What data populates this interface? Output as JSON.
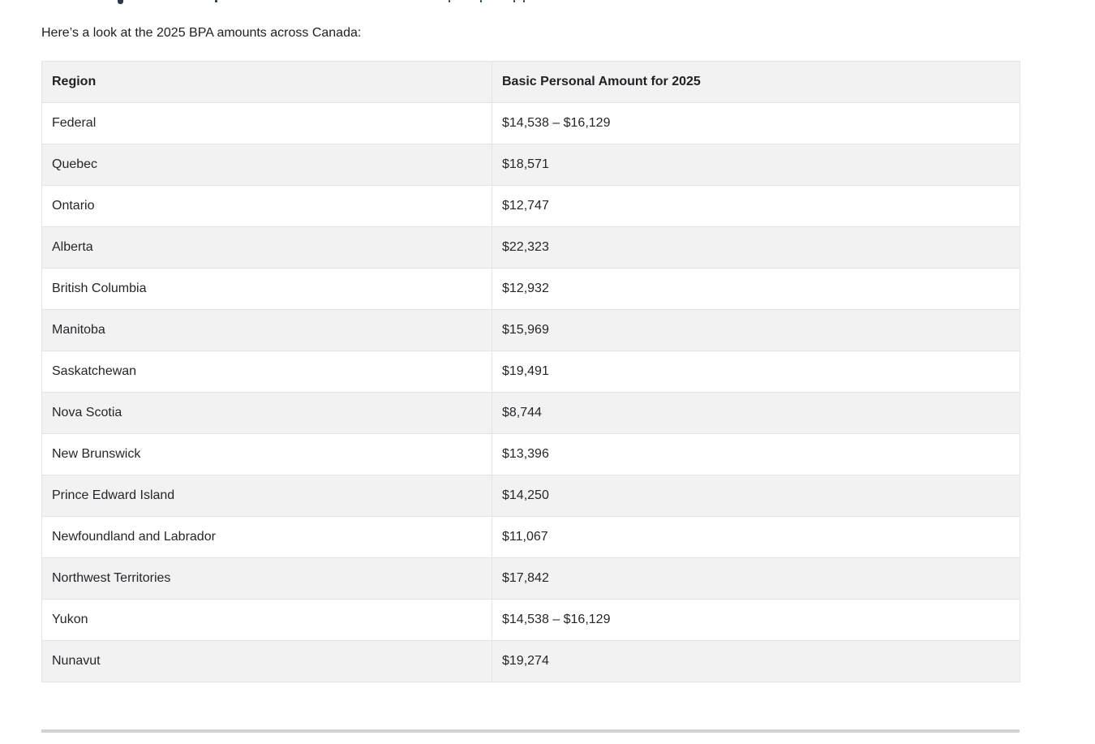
{
  "page": {
    "intro_text": "Here’s a look at the 2025 BPA amounts across Canada:"
  },
  "table": {
    "columns": [
      "Region",
      "Basic Personal Amount for 2025"
    ],
    "rows": [
      {
        "region": "Federal",
        "amount": "$14,538 – $16,129"
      },
      {
        "region": "Quebec",
        "amount": "$18,571"
      },
      {
        "region": "Ontario",
        "amount": "$12,747"
      },
      {
        "region": "Alberta",
        "amount": "$22,323"
      },
      {
        "region": "British Columbia",
        "amount": "$12,932"
      },
      {
        "region": "Manitoba",
        "amount": "$15,969"
      },
      {
        "region": "Saskatchewan",
        "amount": "$19,491"
      },
      {
        "region": "Nova Scotia",
        "amount": "$8,744"
      },
      {
        "region": "New Brunswick",
        "amount": "$13,396"
      },
      {
        "region": "Prince Edward Island",
        "amount": "$14,250"
      },
      {
        "region": "Newfoundland and Labrador",
        "amount": "$11,067"
      },
      {
        "region": "Northwest Territories",
        "amount": "$17,842"
      },
      {
        "region": "Yukon",
        "amount": "$14,538 – $16,129"
      },
      {
        "region": "Nunavut",
        "amount": "$19,274"
      }
    ]
  },
  "colors": {
    "row_stripe": "#f2f2f3",
    "table_border": "#e3e4e8",
    "divider": "#d2d2d4",
    "text": "#24262b"
  }
}
